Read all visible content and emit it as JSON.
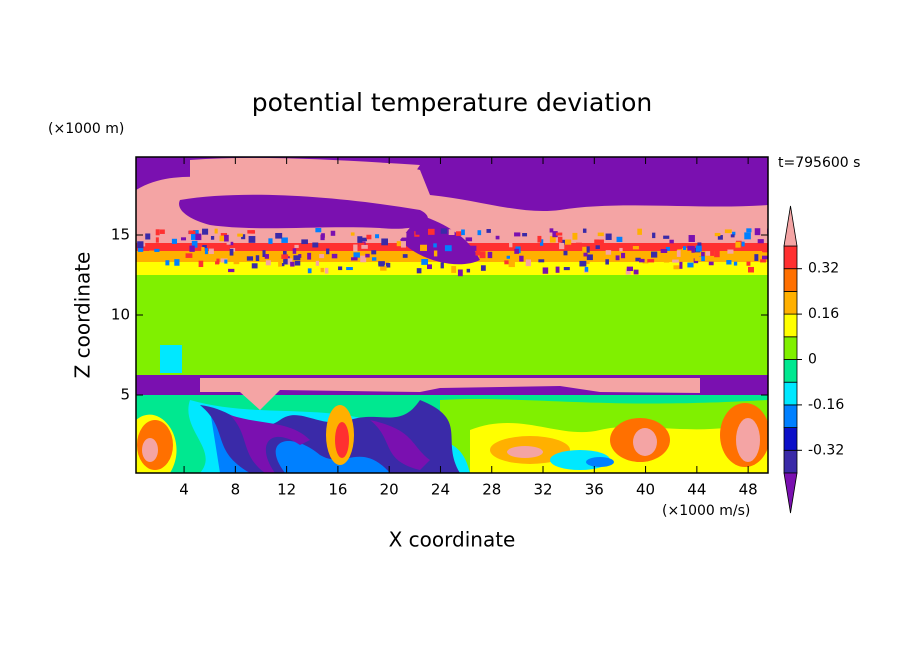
{
  "chart_data": {
    "type": "contour",
    "title": "potential temperature deviation",
    "xlabel": "X coordinate",
    "ylabel": "Z coordinate",
    "x_unit": "(×1000 m/s)",
    "y_unit": "(×1000 m)",
    "annotation": "t=795600 s",
    "xlim": [
      0.25,
      49.55
    ],
    "ylim": [
      0.125,
      19.875
    ],
    "xticks": [
      4,
      8,
      12,
      16,
      20,
      24,
      28,
      32,
      36,
      40,
      44,
      48
    ],
    "yticks": [
      5,
      10,
      15
    ],
    "colorbar": {
      "levels": [
        -0.4,
        -0.32,
        -0.24,
        -0.16,
        -0.08,
        0,
        0.08,
        0.16,
        0.24,
        0.32,
        0.4
      ],
      "colors": [
        "#7a10b0",
        "#3a2aa8",
        "#0c10c8",
        "#0080ff",
        "#00e8ff",
        "#00e890",
        "#80f000",
        "#ffff00",
        "#ffb000",
        "#ff7000",
        "#ff3030",
        "#f4a4a4"
      ],
      "ticks": [
        -0.32,
        -0.16,
        0,
        0.16,
        0.32
      ]
    }
  }
}
